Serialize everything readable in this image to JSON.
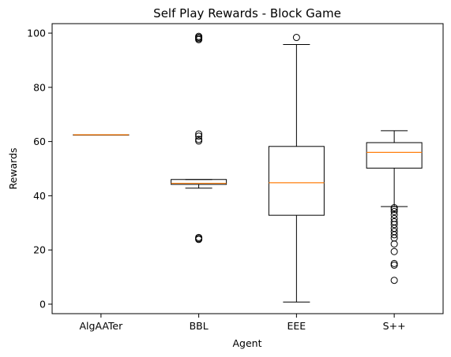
{
  "chart_data": {
    "type": "box",
    "title": "Self Play Rewards - Block Game",
    "xlabel": "Agent",
    "ylabel": "Rewards",
    "ylim": [
      -3.5,
      103.5
    ],
    "yticks": [
      0,
      20,
      40,
      60,
      80,
      100
    ],
    "grid": false,
    "categories": [
      "AlgAATer",
      "BBL",
      "EEE",
      "S++"
    ],
    "boxes": [
      {
        "name": "AlgAATer",
        "whisker_low": 62.5,
        "q1": 62.5,
        "median": 62.5,
        "q3": 62.5,
        "whisker_high": 62.5,
        "outliers": []
      },
      {
        "name": "BBL",
        "whisker_low": 42.8,
        "q1": 44.2,
        "median": 44.6,
        "q3": 46.0,
        "whisker_high": 46.0,
        "outliers": [
          98.8,
          98.4,
          98.0,
          97.6,
          62.8,
          62.0,
          60.8,
          60.2,
          24.6,
          24.2,
          23.9
        ]
      },
      {
        "name": "EEE",
        "whisker_low": 0.8,
        "q1": 32.8,
        "median": 44.8,
        "q3": 58.2,
        "whisker_high": 95.8,
        "outliers": [
          98.4
        ]
      },
      {
        "name": "S++",
        "whisker_low": 36.0,
        "q1": 50.2,
        "median": 56.0,
        "q3": 59.6,
        "whisker_high": 64.0,
        "outliers": [
          35.6,
          35.0,
          34.2,
          33.0,
          31.6,
          30.4,
          29.4,
          28.0,
          26.8,
          25.6,
          24.4,
          22.2,
          19.4,
          15.0,
          14.4,
          8.8
        ]
      }
    ],
    "colors": {
      "box": "#000000",
      "median": "#ff7f0e",
      "background": "#ffffff"
    }
  }
}
